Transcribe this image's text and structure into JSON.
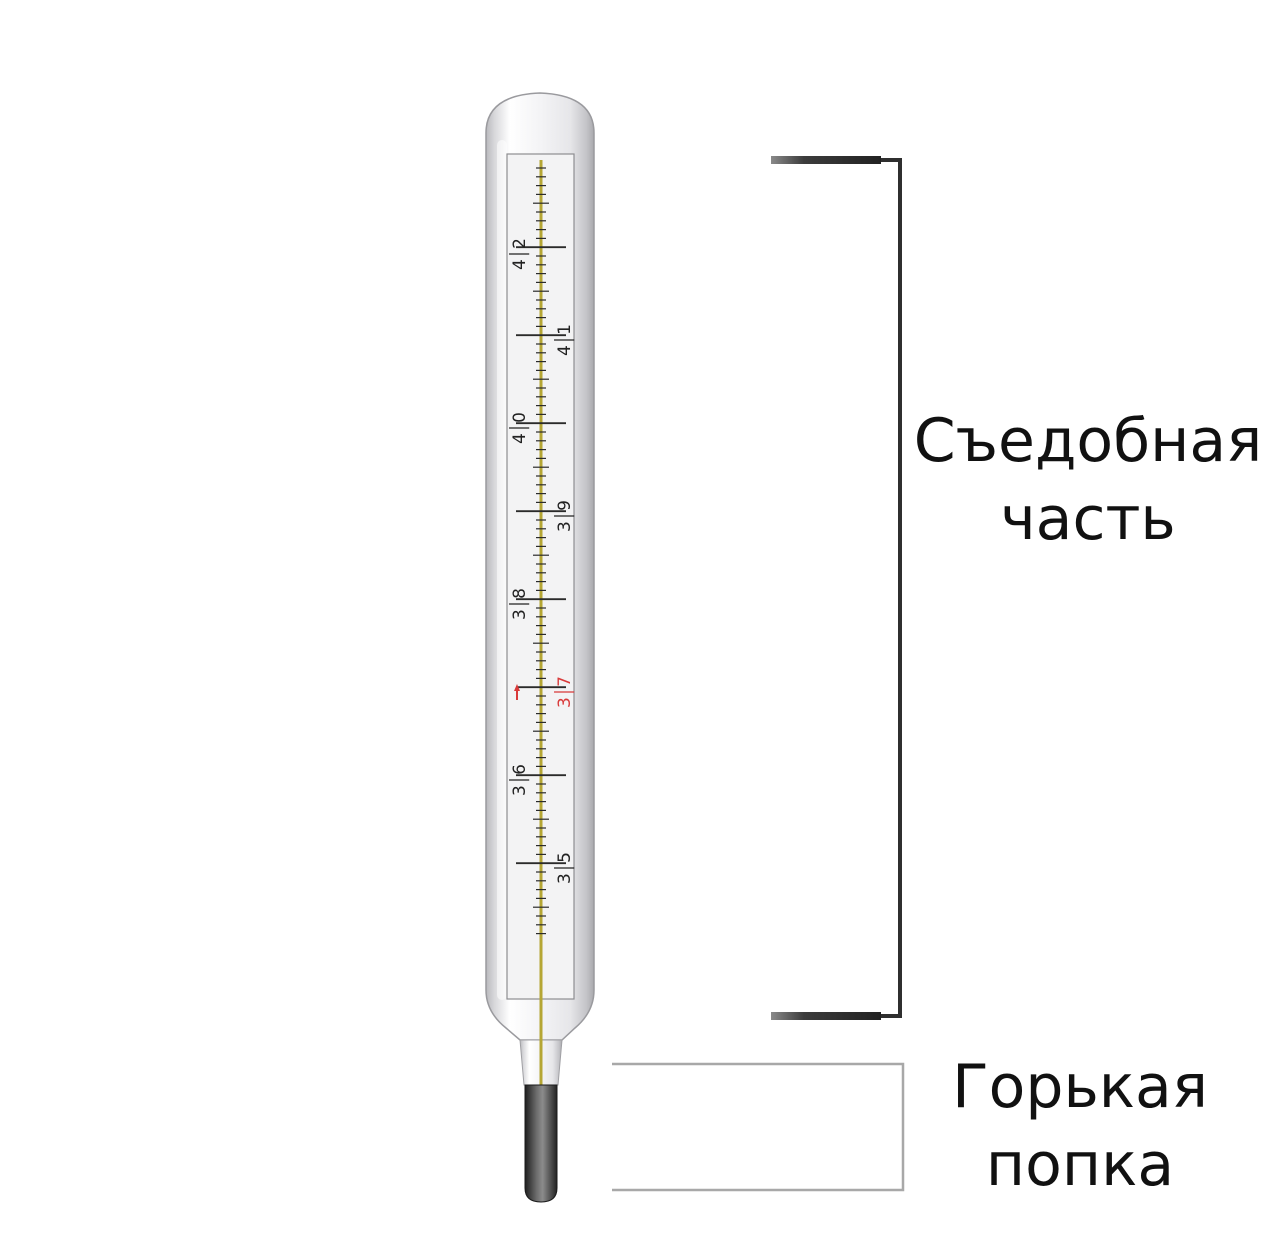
{
  "thermometer": {
    "scale_labels": [
      {
        "pair": [
          "4",
          "2"
        ],
        "red": false
      },
      {
        "pair": [
          "4",
          "1"
        ],
        "red": false
      },
      {
        "pair": [
          "4",
          "0"
        ],
        "red": false
      },
      {
        "pair": [
          "3",
          "9"
        ],
        "red": false
      },
      {
        "pair": [
          "3",
          "8"
        ],
        "red": false
      },
      {
        "pair": [
          "3",
          "7"
        ],
        "red": true
      },
      {
        "pair": [
          "3",
          "6"
        ],
        "red": false
      },
      {
        "pair": [
          "3",
          "5"
        ],
        "red": false
      }
    ],
    "mercury_color": "#b5a634",
    "normal_mark_color": "#d93a3a",
    "tip_color": "#404040"
  },
  "edible_part": {
    "line1": "Съедобная",
    "line2": "часть"
  },
  "bitter_part": {
    "line1": "Горькая",
    "line2": "попка"
  }
}
